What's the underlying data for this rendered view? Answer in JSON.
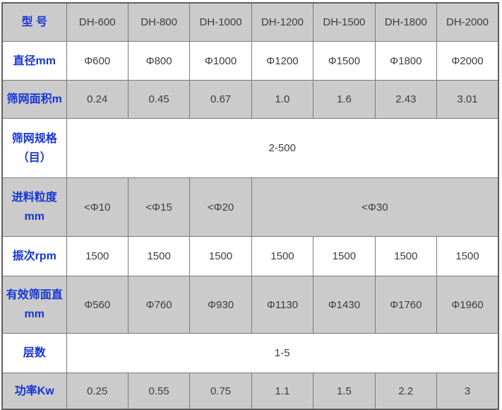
{
  "colors": {
    "label_blue": "#1535d6",
    "value_gray": "#3d3d3d",
    "row_gray": "#cbcbcb",
    "row_white": "#ffffff",
    "border_inner": "#7a7a7a",
    "border_outer": "#5f5f5f"
  },
  "table": {
    "model_header": "型 号",
    "models": [
      "DH-600",
      "DH-800",
      "DH-1000",
      "DH-1200",
      "DH-1500",
      "DH-1800",
      "DH-2000"
    ],
    "diameter": {
      "label": "直径mm",
      "values": [
        "Φ600",
        "Φ800",
        "Φ1000",
        "Φ1200",
        "Φ1500",
        "Φ1800",
        "Φ2000"
      ]
    },
    "screen_area": {
      "label": "筛网面积m",
      "values": [
        "0.24",
        "0.45",
        "0.67",
        "1.0",
        "1.6",
        "2.43",
        "3.01"
      ]
    },
    "mesh_spec": {
      "label_line1": "筛网规格",
      "label_line2": "（目）",
      "merged_value": "2-500"
    },
    "feed_size": {
      "label_line1": "进料粒度",
      "label_line2": "mm",
      "values": [
        "<Φ10",
        "<Φ15",
        "<Φ20"
      ],
      "merged_value": "<Φ30"
    },
    "vibration": {
      "label": "振次rpm",
      "values": [
        "1500",
        "1500",
        "1500",
        "1500",
        "1500",
        "1500",
        "1500"
      ]
    },
    "effective_screen": {
      "label_line1": "有效筛面直",
      "label_line2": "mm",
      "values": [
        "Φ560",
        "Φ760",
        "Φ930",
        "Φ1130",
        "Φ1430",
        "Φ1760",
        "Φ1960"
      ]
    },
    "layers": {
      "label": "层数",
      "merged_value": "1-5"
    },
    "power": {
      "label": "功率Kw",
      "values": [
        "0.25",
        "0.55",
        "0.75",
        "1.1",
        "1.5",
        "2.2",
        "3"
      ]
    }
  }
}
